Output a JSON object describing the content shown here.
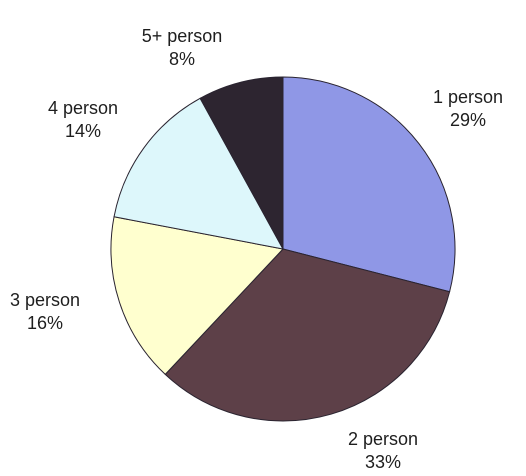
{
  "chart_data": {
    "type": "pie",
    "title": "",
    "slices": [
      {
        "label": "1 person",
        "value": 29,
        "percent_label": "29%",
        "color": "#8f97e6"
      },
      {
        "label": "2 person",
        "value": 33,
        "percent_label": "33%",
        "color": "#5d4048"
      },
      {
        "label": "3 person",
        "value": 16,
        "percent_label": "16%",
        "color": "#ffffcf"
      },
      {
        "label": "4 person",
        "value": 14,
        "percent_label": "14%",
        "color": "#ddf7fb"
      },
      {
        "label": "5+ person",
        "value": 8,
        "percent_label": "8%",
        "color": "#2d2530"
      }
    ],
    "start_angle": "top",
    "direction": "clockwise",
    "legend": false
  }
}
